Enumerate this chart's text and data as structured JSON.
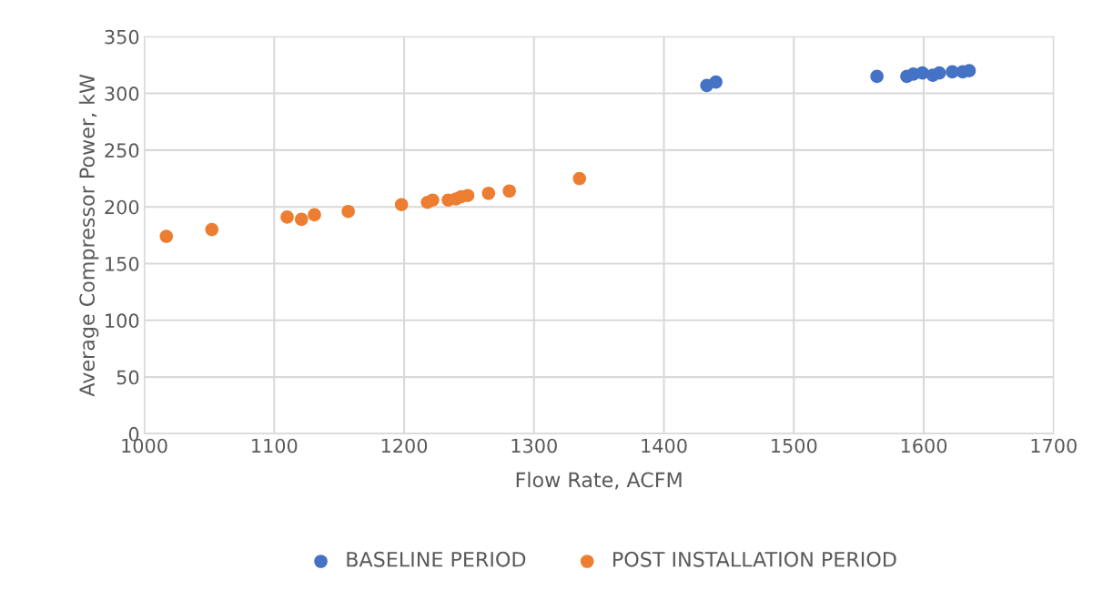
{
  "chart_data": {
    "type": "scatter",
    "xlabel": "Flow Rate, ACFM",
    "ylabel": "Average Compressor Power, kW",
    "xlim": [
      1000,
      1700
    ],
    "xticks": [
      1000,
      1100,
      1200,
      1300,
      1400,
      1500,
      1600,
      1700
    ],
    "ylim": [
      0,
      350
    ],
    "yticks": [
      0,
      50,
      100,
      150,
      200,
      250,
      300,
      350
    ],
    "grid": true,
    "legend": "bottom",
    "marker": "circle",
    "series": [
      {
        "name": "BASELINE PERIOD",
        "color": "#4472c4",
        "x": [
          1433,
          1440,
          1564,
          1587,
          1592,
          1599,
          1607,
          1612,
          1622,
          1630,
          1635
        ],
        "values": [
          307,
          310,
          315,
          315,
          317,
          318,
          316,
          318,
          319,
          319,
          320
        ]
      },
      {
        "name": "POST INSTALLATION PERIOD",
        "color": "#ed7d31",
        "x": [
          1017,
          1052,
          1110,
          1121,
          1131,
          1157,
          1198,
          1218,
          1222,
          1234,
          1240,
          1244,
          1249,
          1265,
          1281,
          1335
        ],
        "values": [
          174,
          180,
          191,
          189,
          193,
          196,
          202,
          204,
          206,
          206,
          207,
          209,
          210,
          212,
          214,
          225
        ]
      }
    ]
  }
}
